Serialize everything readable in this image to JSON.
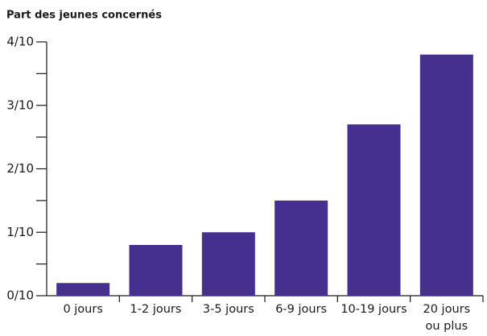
{
  "chart_data": {
    "type": "bar",
    "ylabel": "Part des jeunes concernés",
    "categories": [
      "0 jours",
      "1-2 jours",
      "3-5 jours",
      "6-9 jours",
      "10-19 jours",
      "20 jours ou plus"
    ],
    "values": [
      0.02,
      0.08,
      0.1,
      0.15,
      0.27,
      0.38
    ],
    "color": "#46308f",
    "ylim": [
      0,
      0.4
    ],
    "yticks": [
      {
        "value": 0,
        "label": "0/10"
      },
      {
        "value": 0.1,
        "label": "1/10"
      },
      {
        "value": 0.2,
        "label": "2/10"
      },
      {
        "value": 0.3,
        "label": "3/10"
      },
      {
        "value": 0.4,
        "label": "4/10"
      }
    ],
    "yticks_minor": [
      0.05,
      0.15,
      0.25,
      0.35
    ],
    "grid": false
  }
}
